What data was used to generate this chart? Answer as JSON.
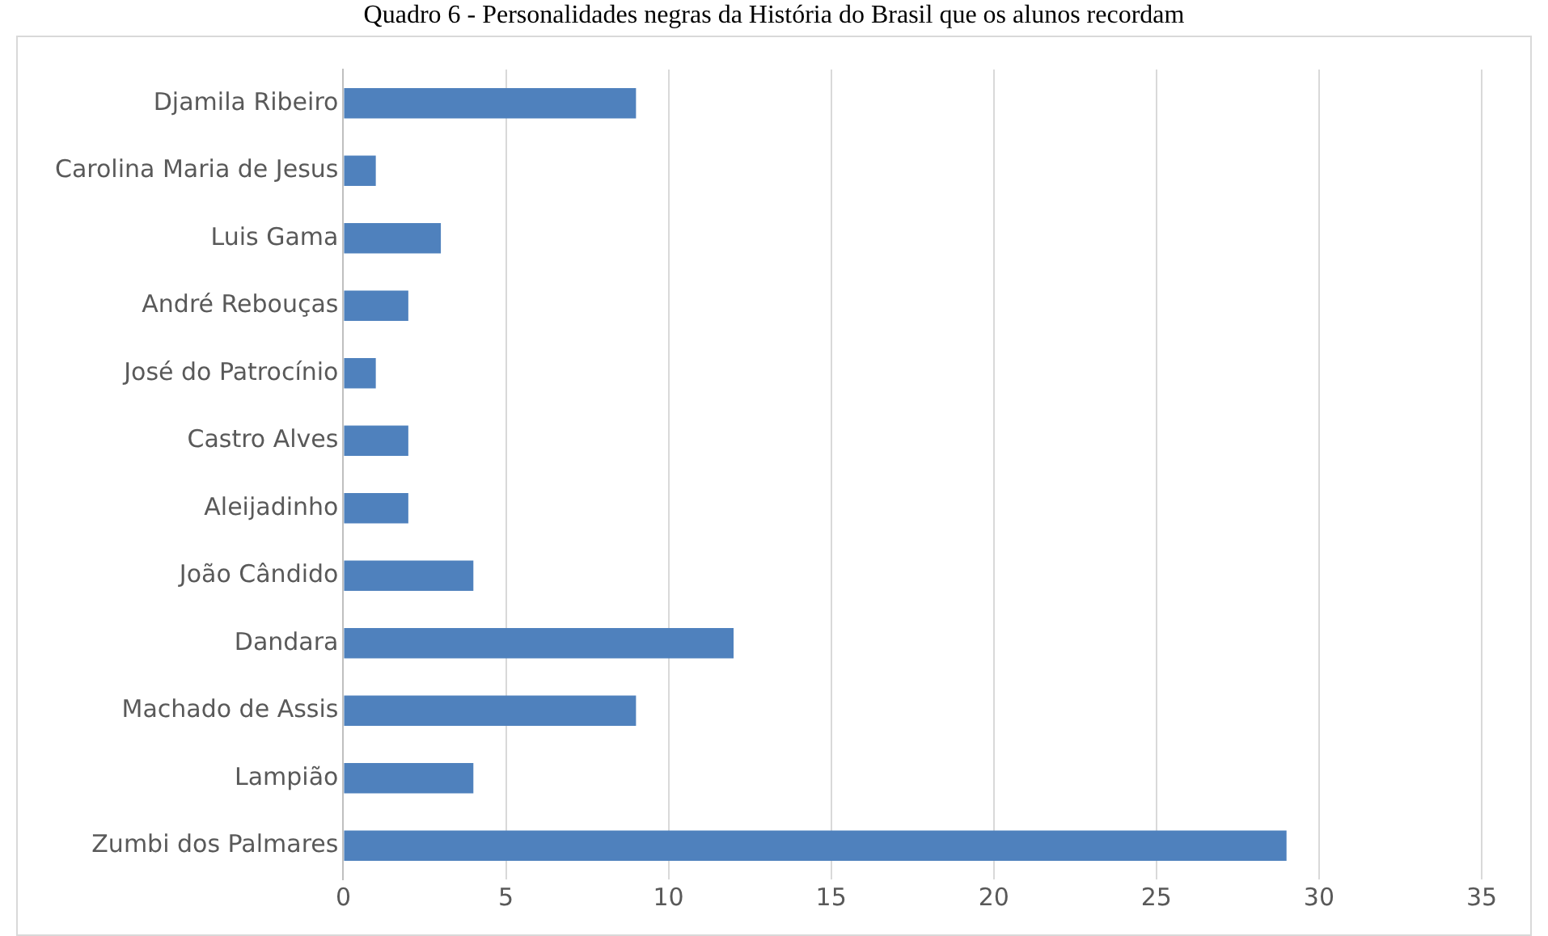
{
  "chart_data": {
    "type": "bar",
    "orientation": "horizontal",
    "title": "Quadro 6 - Personalidades negras da História do Brasil que os alunos recordam",
    "categories": [
      "Djamila Ribeiro",
      "Carolina Maria de Jesus",
      "Luis Gama",
      "André Rebouças",
      "José do Patrocínio",
      "Castro Alves",
      "Aleijadinho",
      "João Cândido",
      "Dandara",
      "Machado de Assis",
      "Lampião",
      "Zumbi dos Palmares"
    ],
    "values": [
      9,
      1,
      3,
      2,
      1,
      2,
      2,
      4,
      12,
      9,
      4,
      29
    ],
    "color": "#4f81bd",
    "xlim": [
      0,
      35
    ],
    "xticks": [
      0,
      5,
      10,
      15,
      20,
      25,
      30,
      35
    ],
    "grid": "x",
    "legend": false
  }
}
